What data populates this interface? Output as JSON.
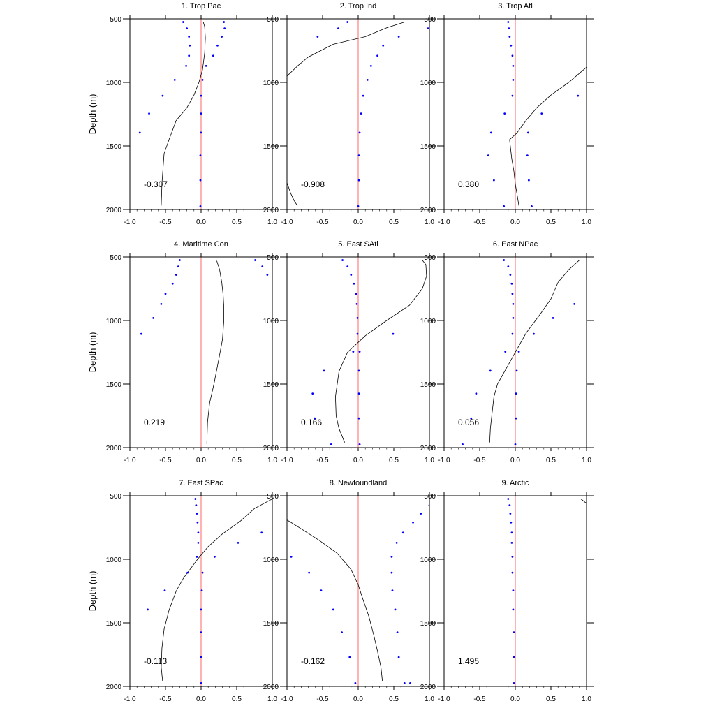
{
  "chart_data": [
    {
      "type": "scatter",
      "title": "1. Trop Pac",
      "annotation": "-0.307",
      "xlim": [
        -1,
        1
      ],
      "ylim": [
        500,
        2000
      ],
      "xticks": [
        -1,
        -0.5,
        0,
        0.5,
        1
      ],
      "xtick_labels": [
        "-1.0",
        "-0.5",
        "0.0",
        "0.5",
        "1.0"
      ],
      "yticks": [
        500,
        1000,
        1500,
        2000
      ],
      "ylabel": "Depth (m)",
      "y_inverted": true,
      "reference_line": {
        "x": 0,
        "color": "#ff8080"
      },
      "line": {
        "x": [
          0.03,
          0.05,
          0.06,
          0.05,
          0.02,
          -0.03,
          -0.1,
          -0.2,
          -0.35,
          -0.45,
          -0.52,
          -0.55,
          -0.56
        ],
        "y": [
          525,
          560,
          650,
          770,
          900,
          1000,
          1100,
          1200,
          1300,
          1450,
          1560,
          1800,
          1970
        ]
      },
      "series": [
        {
          "color": "#0000ff",
          "x": [
            -0.25,
            -0.2,
            -0.17,
            -0.16,
            -0.17,
            -0.21,
            -0.37,
            -0.54,
            -0.73,
            -0.86
          ],
          "y": [
            525,
            575,
            640,
            710,
            790,
            870,
            980,
            1105,
            1245,
            1395
          ]
        },
        {
          "color": "#0000ff",
          "x": [
            0.32,
            0.33,
            0.29,
            0.23,
            0.17,
            0.07,
            0.02,
            0.0,
            0.0,
            0.0,
            -0.01,
            -0.01,
            -0.01
          ],
          "y": [
            525,
            575,
            640,
            710,
            790,
            870,
            980,
            1105,
            1245,
            1395,
            1575,
            1770,
            1975
          ]
        }
      ]
    },
    {
      "type": "scatter",
      "title": "2. Trop Ind",
      "annotation": "-0.908",
      "xlim": [
        -1,
        1
      ],
      "ylim": [
        500,
        2000
      ],
      "xticks": [
        -1,
        -0.5,
        0,
        0.5,
        1
      ],
      "xtick_labels": [
        "-1.0",
        "-0.5",
        "0.0",
        "0.5",
        "1.0"
      ],
      "yticks": [
        500,
        1000,
        1500,
        2000
      ],
      "ylabel": "",
      "y_inverted": true,
      "reference_line": {
        "x": 0,
        "color": "#ff8080"
      },
      "line": {
        "x": [
          0.65,
          0.4,
          0.1,
          -0.35,
          -0.7,
          -0.85,
          -1.0
        ],
        "y": [
          525,
          570,
          640,
          700,
          800,
          870,
          950
        ]
      },
      "line2": {
        "x": [
          -1.0,
          -0.95,
          -0.9,
          -0.86
        ],
        "y": [
          1790,
          1870,
          1930,
          1965
        ]
      },
      "series": [
        {
          "color": "#0000ff",
          "x": [
            -0.15,
            -0.28,
            -0.57
          ],
          "y": [
            525,
            575,
            640
          ]
        },
        {
          "color": "#0000ff",
          "x": [
            0.98,
            0.57,
            0.35,
            0.27,
            0.18,
            0.13,
            0.07,
            0.04,
            0.02,
            0.01,
            0.01,
            0.0
          ],
          "y": [
            575,
            640,
            710,
            790,
            870,
            980,
            1105,
            1245,
            1395,
            1575,
            1770,
            1975
          ]
        }
      ]
    },
    {
      "type": "scatter",
      "title": "3. Trop Atl",
      "annotation": "0.380",
      "xlim": [
        -1,
        1
      ],
      "ylim": [
        500,
        2000
      ],
      "xticks": [
        -1,
        -0.5,
        0,
        0.5,
        1
      ],
      "xtick_labels": [
        "-1.0",
        "-0.5",
        "0.0",
        "0.5",
        "1.0"
      ],
      "yticks": [
        500,
        1000,
        1500,
        2000
      ],
      "ylabel": "",
      "y_inverted": true,
      "reference_line": {
        "x": 0,
        "color": "#ff8080"
      },
      "line": {
        "x": [
          1.0,
          0.75,
          0.5,
          0.3,
          0.15,
          0.02,
          -0.08,
          -0.05,
          -0.02,
          0.0,
          0.03,
          0.05
        ],
        "y": [
          880,
          1000,
          1100,
          1200,
          1300,
          1400,
          1450,
          1600,
          1700,
          1800,
          1900,
          1970
        ]
      },
      "series": [
        {
          "color": "#0000ff",
          "x": [
            -0.1,
            -0.09,
            -0.08,
            -0.06,
            -0.04,
            -0.03,
            -0.03,
            -0.04,
            -0.15,
            -0.34,
            -0.38,
            -0.3,
            -0.16
          ],
          "y": [
            525,
            575,
            640,
            710,
            790,
            870,
            980,
            1105,
            1245,
            1395,
            1575,
            1770,
            1975
          ]
        },
        {
          "color": "#0000ff",
          "x": [
            0.88,
            0.37,
            0.18,
            0.17,
            0.19,
            0.23
          ],
          "y": [
            1105,
            1245,
            1395,
            1575,
            1770,
            1975
          ]
        }
      ]
    },
    {
      "type": "scatter",
      "title": "4. Maritime Con",
      "annotation": "0.219",
      "xlim": [
        -1,
        1
      ],
      "ylim": [
        500,
        2000
      ],
      "xticks": [
        -1,
        -0.5,
        0,
        0.5,
        1
      ],
      "xtick_labels": [
        "-1.0",
        "-0.5",
        "0.0",
        "0.5",
        "1.0"
      ],
      "yticks": [
        500,
        1000,
        1500,
        2000
      ],
      "ylabel": "Depth (m)",
      "y_inverted": true,
      "reference_line": {
        "x": 0,
        "color": "#ff8080"
      },
      "line": {
        "x": [
          0.22,
          0.26,
          0.29,
          0.31,
          0.32,
          0.32,
          0.3,
          0.25,
          0.18,
          0.12,
          0.09,
          0.08
        ],
        "y": [
          530,
          600,
          700,
          800,
          900,
          1000,
          1150,
          1300,
          1500,
          1650,
          1800,
          1970
        ]
      },
      "series": [
        {
          "color": "#0000ff",
          "x": [
            -0.3,
            -0.32,
            -0.35,
            -0.4,
            -0.5,
            -0.56,
            -0.67,
            -0.84
          ],
          "y": [
            525,
            575,
            640,
            710,
            790,
            870,
            980,
            1105
          ]
        },
        {
          "color": "#0000ff",
          "x": [
            0.76,
            0.86,
            0.93
          ],
          "y": [
            525,
            575,
            640
          ]
        }
      ]
    },
    {
      "type": "scatter",
      "title": "5. East SAtl",
      "annotation": "0.166",
      "xlim": [
        -1,
        1
      ],
      "ylim": [
        500,
        2000
      ],
      "xticks": [
        -1,
        -0.5,
        0,
        0.5,
        1
      ],
      "xtick_labels": [
        "-1.0",
        "-0.5",
        "0.0",
        "0.5",
        "1.0"
      ],
      "yticks": [
        500,
        1000,
        1500,
        2000
      ],
      "ylabel": "",
      "y_inverted": true,
      "reference_line": {
        "x": 0,
        "color": "#ff8080"
      },
      "line": {
        "x": [
          0.9,
          0.95,
          0.96,
          0.9,
          0.72,
          0.4,
          0.1,
          -0.15,
          -0.27,
          -0.32,
          -0.31,
          -0.27,
          -0.19
        ],
        "y": [
          525,
          560,
          650,
          750,
          880,
          1000,
          1120,
          1250,
          1400,
          1600,
          1750,
          1850,
          1960
        ]
      },
      "series": [
        {
          "color": "#0000ff",
          "x": [
            -0.22,
            -0.15,
            -0.1,
            -0.06,
            -0.03,
            -0.02,
            -0.01,
            -0.01,
            -0.07,
            -0.48,
            -0.64,
            -0.61,
            -0.38
          ],
          "y": [
            525,
            575,
            640,
            710,
            790,
            870,
            980,
            1105,
            1245,
            1395,
            1575,
            1770,
            1975
          ]
        },
        {
          "color": "#0000ff",
          "x": [
            0.49,
            0.02,
            0.01,
            0.01,
            0.01,
            0.02
          ],
          "y": [
            1105,
            1245,
            1395,
            1575,
            1770,
            1975
          ]
        }
      ]
    },
    {
      "type": "scatter",
      "title": "6. East NPac",
      "annotation": "0.056",
      "xlim": [
        -1,
        1
      ],
      "ylim": [
        500,
        2000
      ],
      "xticks": [
        -1,
        -0.5,
        0,
        0.5,
        1
      ],
      "xtick_labels": [
        "-1.0",
        "-0.5",
        "0.0",
        "0.5",
        "1.0"
      ],
      "yticks": [
        500,
        1000,
        1500,
        2000
      ],
      "ylabel": "",
      "y_inverted": true,
      "reference_line": {
        "x": 0,
        "color": "#ff8080"
      },
      "line": {
        "x": [
          0.9,
          0.75,
          0.6,
          0.5,
          0.35,
          0.15,
          0.0,
          -0.15,
          -0.25,
          -0.3,
          -0.33,
          -0.35,
          -0.36
        ],
        "y": [
          525,
          600,
          700,
          830,
          950,
          1100,
          1250,
          1400,
          1500,
          1600,
          1750,
          1850,
          1960
        ]
      },
      "series": [
        {
          "color": "#0000ff",
          "x": [
            -0.16,
            -0.1,
            -0.07,
            -0.05,
            -0.04,
            -0.03,
            -0.03,
            -0.04,
            -0.14,
            -0.35,
            -0.55,
            -0.62,
            -0.74
          ],
          "y": [
            525,
            575,
            640,
            710,
            790,
            870,
            980,
            1105,
            1245,
            1395,
            1575,
            1770,
            1975
          ]
        },
        {
          "color": "#0000ff",
          "x": [
            0.83,
            0.53,
            0.26,
            0.05,
            0.02,
            0.01,
            0.01,
            0.0
          ],
          "y": [
            870,
            980,
            1105,
            1245,
            1395,
            1575,
            1770,
            1975
          ]
        }
      ]
    },
    {
      "type": "scatter",
      "title": "7. East SPac",
      "annotation": "-0.113",
      "xlim": [
        -1,
        1
      ],
      "ylim": [
        500,
        2000
      ],
      "xticks": [
        -1,
        -0.5,
        0,
        0.5,
        1
      ],
      "xtick_labels": [
        "-1.0",
        "-0.5",
        "0.0",
        "0.5",
        "1.0"
      ],
      "yticks": [
        500,
        1000,
        1500,
        2000
      ],
      "ylabel": "Depth (m)",
      "y_inverted": true,
      "reference_line": {
        "x": 0,
        "color": "#ff8080"
      },
      "line": {
        "x": [
          1.0,
          0.75,
          0.55,
          0.3,
          0.1,
          -0.05,
          -0.25,
          -0.35,
          -0.45,
          -0.52,
          -0.55,
          -0.56,
          -0.54
        ],
        "y": [
          525,
          600,
          700,
          800,
          900,
          1000,
          1150,
          1250,
          1400,
          1550,
          1700,
          1850,
          1960
        ]
      },
      "series": [
        {
          "color": "#0000ff",
          "x": [
            -0.08,
            -0.07,
            -0.06,
            -0.05,
            -0.04,
            -0.04,
            -0.06,
            -0.19,
            -0.51,
            -0.75
          ],
          "y": [
            525,
            575,
            640,
            710,
            790,
            870,
            980,
            1105,
            1245,
            1395
          ]
        },
        {
          "color": "#0000ff",
          "x": [
            0.85,
            0.52,
            0.19,
            0.02,
            0.01,
            0.0,
            0.0,
            0.0,
            0.0
          ],
          "y": [
            790,
            870,
            980,
            1105,
            1245,
            1395,
            1575,
            1770,
            1975
          ]
        }
      ]
    },
    {
      "type": "scatter",
      "title": "8. Newfoundland",
      "annotation": "-0.162",
      "xlim": [
        -1,
        1
      ],
      "ylim": [
        500,
        2000
      ],
      "xticks": [
        -1,
        -0.5,
        0,
        0.5,
        1
      ],
      "xtick_labels": [
        "-1.0",
        "-0.5",
        "0.0",
        "0.5",
        "1.0"
      ],
      "yticks": [
        500,
        1000,
        1500,
        2000
      ],
      "ylabel": "",
      "y_inverted": true,
      "reference_line": {
        "x": 0,
        "color": "#ff8080"
      },
      "line": {
        "x": [
          -1.0,
          -0.8,
          -0.55,
          -0.3,
          -0.1,
          0.0,
          0.07,
          0.15,
          0.22,
          0.27,
          0.32,
          0.34
        ],
        "y": [
          690,
          760,
          850,
          950,
          1080,
          1200,
          1320,
          1450,
          1600,
          1720,
          1850,
          1960
        ]
      },
      "series": [
        {
          "color": "#0000ff",
          "x": [
            -0.94,
            -0.69,
            -0.52,
            -0.35,
            -0.23,
            -0.12,
            -0.04
          ],
          "y": [
            980,
            1105,
            1245,
            1395,
            1575,
            1770,
            1975
          ]
        },
        {
          "color": "#0000ff",
          "x": [
            1.0,
            0.88,
            0.77,
            0.63,
            0.54,
            0.47,
            0.47,
            0.48,
            0.52,
            0.55,
            0.57,
            0.65,
            0.73
          ],
          "y": [
            575,
            640,
            710,
            790,
            870,
            980,
            1105,
            1245,
            1395,
            1575,
            1770,
            1975,
            1975
          ]
        }
      ]
    },
    {
      "type": "scatter",
      "title": "9. Arctic",
      "annotation": "1.495",
      "xlim": [
        -1,
        1
      ],
      "ylim": [
        500,
        2000
      ],
      "xticks": [
        -1,
        -0.5,
        0,
        0.5,
        1
      ],
      "xtick_labels": [
        "-1.0",
        "-0.5",
        "0.0",
        "0.5",
        "1.0"
      ],
      "yticks": [
        500,
        1000,
        1500,
        2000
      ],
      "ylabel": "",
      "y_inverted": true,
      "reference_line": {
        "x": 0,
        "color": "#ff8080"
      },
      "line": {
        "x": [
          0.92,
          1.0
        ],
        "y": [
          525,
          560
        ]
      },
      "series": [
        {
          "color": "#0000ff",
          "x": [
            -0.1,
            -0.08,
            -0.07,
            -0.06,
            -0.05,
            -0.05,
            -0.04,
            -0.04,
            -0.03,
            -0.03,
            -0.02,
            -0.02,
            -0.02
          ],
          "y": [
            525,
            575,
            640,
            710,
            790,
            870,
            980,
            1105,
            1245,
            1395,
            1575,
            1770,
            1975
          ]
        }
      ]
    }
  ]
}
